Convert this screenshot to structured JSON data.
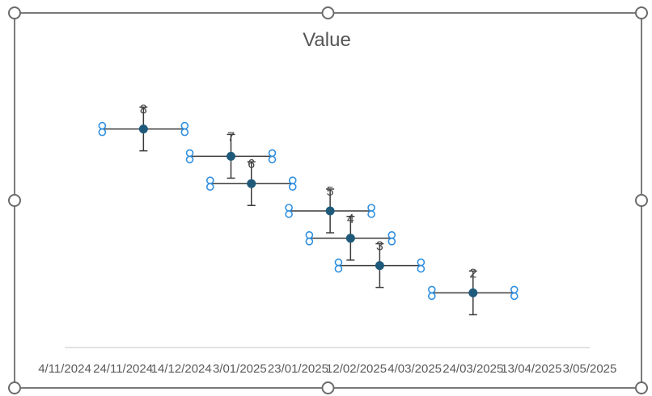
{
  "chart_data": {
    "type": "scatter",
    "title": "Value",
    "xlabel": "",
    "ylabel": "",
    "x_ticks": [
      "4/11/2024",
      "24/11/2024",
      "14/12/2024",
      "3/01/2025",
      "23/01/2025",
      "12/02/2025",
      "4/03/2025",
      "24/03/2025",
      "13/04/2025",
      "3/05/2025"
    ],
    "xlim": [
      "2024-11-04",
      "2025-05-03"
    ],
    "ylim": [
      0,
      10
    ],
    "grid": false,
    "legend": "none",
    "selected": true,
    "series": [
      {
        "points": [
          {
            "x": "2024-12-01",
            "y": 8,
            "label": "8"
          },
          {
            "x": "2024-12-31",
            "y": 7,
            "label": "7"
          },
          {
            "x": "2025-01-07",
            "y": 6,
            "label": "6"
          },
          {
            "x": "2025-02-03",
            "y": 5,
            "label": "5"
          },
          {
            "x": "2025-02-10",
            "y": 4,
            "label": "4"
          },
          {
            "x": "2025-02-20",
            "y": 3,
            "label": "3"
          },
          {
            "x": "2025-03-24",
            "y": 2,
            "label": "2"
          }
        ],
        "x_error_days": 14,
        "y_error": 0.8
      }
    ],
    "colors": {
      "point": "#1f5a7a",
      "error_bar": "#3a3a3a",
      "title": "#555555",
      "tick_label": "#5a5a5a",
      "selection": "#2f8fe0",
      "frame": "#7a7a7a"
    }
  }
}
